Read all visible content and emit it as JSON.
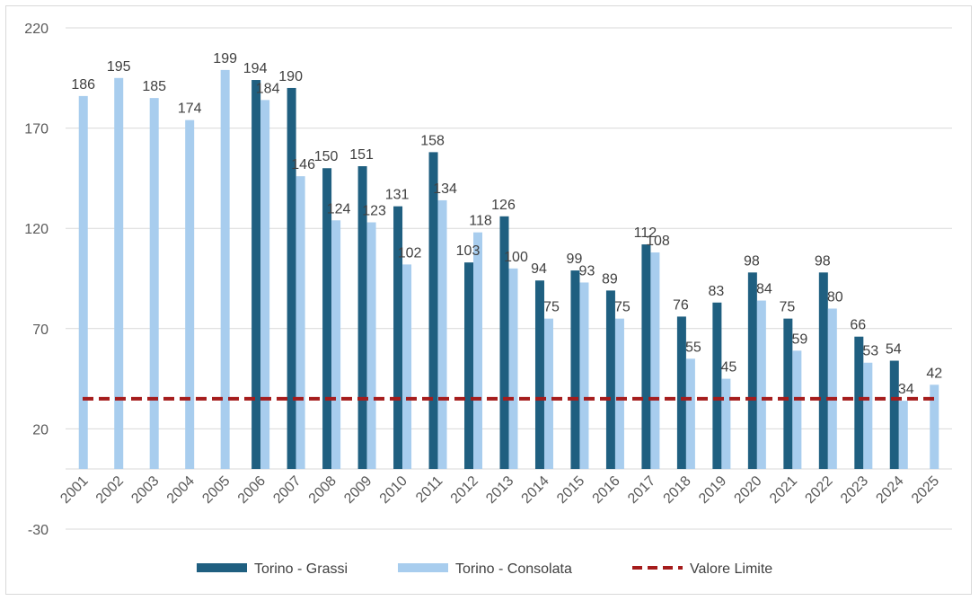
{
  "chart_data": {
    "type": "bar",
    "categories": [
      "2001",
      "2002",
      "2003",
      "2004",
      "2005",
      "2006",
      "2007",
      "2008",
      "2009",
      "2010",
      "2011",
      "2012",
      "2013",
      "2014",
      "2015",
      "2016",
      "2017",
      "2018",
      "2019",
      "2020",
      "2021",
      "2022",
      "2023",
      "2024",
      "2025"
    ],
    "series": [
      {
        "name": "Torino - Grassi",
        "color": "#1f5f80",
        "values": [
          null,
          null,
          null,
          null,
          null,
          194,
          190,
          150,
          151,
          131,
          158,
          103,
          126,
          94,
          99,
          89,
          112,
          76,
          83,
          98,
          75,
          98,
          66,
          54,
          null
        ]
      },
      {
        "name": "Torino - Consolata",
        "color": "#a8cdee",
        "values": [
          186,
          195,
          185,
          174,
          199,
          184,
          146,
          124,
          123,
          102,
          134,
          118,
          100,
          75,
          93,
          75,
          108,
          55,
          45,
          84,
          59,
          80,
          53,
          34,
          42
        ]
      }
    ],
    "reference_line": {
      "name": "Valore Limite",
      "value": 35,
      "color": "#a51c1c",
      "style": "dashed"
    },
    "ylim": [
      -30,
      220
    ],
    "yticks": [
      -30,
      20,
      70,
      120,
      170,
      220
    ],
    "grid": true,
    "legend_position": "bottom",
    "title": "",
    "xlabel": "",
    "ylabel": ""
  }
}
